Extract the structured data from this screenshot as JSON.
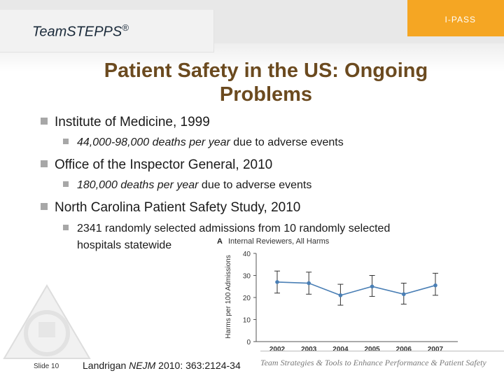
{
  "header": {
    "brand": "Team",
    "brand_bold": "STEPPS",
    "brand_reg": "®",
    "badge": "I-PASS"
  },
  "title": "Patient Safety in the US: Ongoing Problems",
  "bullets": [
    {
      "heading": "Institute of Medicine, 1999",
      "sub_italic": "44,000-98,000 deaths per year",
      "sub_rest": " due to adverse events"
    },
    {
      "heading": "Office of the Inspector General, 2010",
      "sub_italic": "180,000 deaths per year",
      "sub_rest": " due to adverse events"
    },
    {
      "heading": "North Carolina Patient Safety Study, 2010",
      "sub_line1": "2341 randomly selected admissions from 10 randomly selected",
      "sub_line2": "hospitals statewide"
    }
  ],
  "footer": {
    "slide": "Slide 10",
    "citation_pre": "Landrigan ",
    "citation_journal": "NEJM",
    "citation_post": " 2010: 363:2124-34",
    "tagline": "Team Strategies & Tools to Enhance Performance & Patient Safety"
  },
  "colors": {
    "title": "#6b4a1f",
    "badge": "#f5a623",
    "series": "#4a7fb5"
  },
  "chart_data": {
    "type": "line",
    "panel_label": "A",
    "title": "Internal Reviewers, All Harms",
    "ylabel": "Harms per 100 Admissions",
    "xlabel": "",
    "x": [
      "2002",
      "2003",
      "2004",
      "2005",
      "2006",
      "2007"
    ],
    "series": [
      {
        "name": "All Harms",
        "values": [
          27,
          26.5,
          21,
          25,
          21.5,
          25.5
        ]
      }
    ],
    "errors": {
      "low": [
        22,
        21.5,
        16.5,
        20.5,
        17,
        21
      ],
      "high": [
        32,
        31.5,
        26,
        30,
        26.5,
        31
      ]
    },
    "ylim": [
      0,
      40
    ],
    "yticks": [
      0,
      10,
      20,
      30,
      40
    ]
  }
}
